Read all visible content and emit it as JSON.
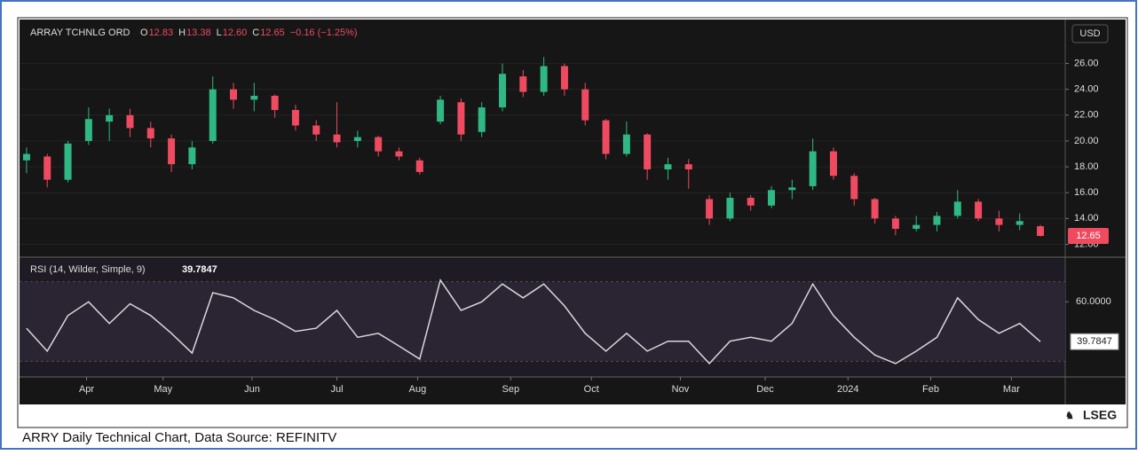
{
  "chart_data": [
    {
      "type": "candlestick",
      "title": "ARRAY TCHNLG ORD",
      "quote": [
        {
          "key": "O",
          "text": "12.83"
        },
        {
          "key": "H",
          "text": "13.38"
        },
        {
          "key": "L",
          "text": "12.60"
        },
        {
          "key": "C",
          "text": "12.65"
        }
      ],
      "change": "−0.16 (−1.25%)",
      "currency": "USD",
      "last_label": "12.65",
      "up_color": "#2fb884",
      "down_color": "#ef4a5f",
      "open": [
        18.5,
        18.8,
        17,
        20,
        21.5,
        22,
        21,
        20.2,
        18.2,
        20,
        24,
        23.2,
        23.5,
        22.4,
        21.2,
        20.5,
        20,
        20.3,
        19.2,
        18.5,
        21.5,
        23,
        20.7,
        22.6,
        25,
        23.8,
        25.8,
        24,
        21.6,
        19,
        20.5,
        17.8,
        18.2,
        15.5,
        14,
        15.6,
        15,
        16.2,
        16.5,
        19.2,
        17.3,
        15.5,
        14,
        13.2,
        13.5,
        14.2,
        15.3,
        14,
        13.5,
        13.4
      ],
      "high": [
        19.5,
        19,
        20,
        22.6,
        22.5,
        22.5,
        21.5,
        20.5,
        20,
        25,
        24.5,
        24.5,
        23.6,
        22.8,
        21.6,
        23,
        20.8,
        20.4,
        19.5,
        18.7,
        23.5,
        23.3,
        23,
        26,
        25.5,
        26.5,
        26,
        24.5,
        21.7,
        21.5,
        20.6,
        18.7,
        18.6,
        15.8,
        16,
        15.8,
        16.5,
        17,
        20.2,
        19.5,
        17.5,
        15.6,
        14.2,
        14.2,
        14.5,
        16.2,
        15.5,
        14.6,
        14.4,
        13.5
      ],
      "low": [
        17.5,
        16.4,
        16.8,
        19.7,
        20,
        20.3,
        19.5,
        17.6,
        17.8,
        19.8,
        22.5,
        22.3,
        21.8,
        20.8,
        20,
        19.5,
        19.5,
        18.8,
        18.5,
        17.4,
        21.3,
        20,
        20.3,
        22.3,
        23.4,
        23.5,
        23.5,
        21.2,
        18.6,
        18.8,
        17,
        17,
        16.3,
        13.5,
        13.8,
        14.6,
        14.8,
        15.5,
        16.2,
        17,
        15,
        13.6,
        12.7,
        13,
        13,
        14,
        13.8,
        13,
        13.1,
        12.6
      ],
      "close": [
        19,
        17,
        19.8,
        21.7,
        22,
        21,
        20.2,
        18.2,
        19.5,
        24,
        23.2,
        23.5,
        22.4,
        21.2,
        20.5,
        19.9,
        20.3,
        19.2,
        18.8,
        17.6,
        23.2,
        20.5,
        22.6,
        25.2,
        23.8,
        25.8,
        24,
        21.6,
        19,
        20.5,
        17.8,
        18.2,
        17.8,
        14,
        15.6,
        15,
        16.2,
        16.4,
        19.2,
        17.3,
        15.5,
        14,
        13.2,
        13.5,
        14.2,
        15.3,
        14,
        13.5,
        13.8,
        12.65
      ],
      "xlim": [
        -0.34,
        50.2
      ],
      "ylim": [
        11,
        29.2
      ],
      "yticks": [
        {
          "value": 12,
          "label": "12.00"
        },
        {
          "value": 14,
          "label": "14.00"
        },
        {
          "value": 16,
          "label": "16.00"
        },
        {
          "value": 18,
          "label": "18.00"
        },
        {
          "value": 20,
          "label": "20.00"
        },
        {
          "value": 22,
          "label": "22.00"
        },
        {
          "value": 24,
          "label": "24.00"
        },
        {
          "value": 26,
          "label": "26.00"
        }
      ]
    },
    {
      "type": "line",
      "title": "RSI (14, Wilder, Simple, 9)",
      "last_label": "39.7847",
      "color": "#d8d8d8",
      "values": [
        46.6,
        35,
        53,
        60,
        49,
        59,
        53,
        44,
        34,
        64.6,
        62,
        55.6,
        51,
        45,
        46.6,
        55.6,
        42,
        44,
        37.6,
        31,
        71,
        55.6,
        60,
        69,
        62,
        69,
        57.9,
        44,
        35,
        44,
        35,
        40,
        40,
        28.7,
        40,
        42,
        40,
        49,
        69,
        53,
        42,
        33,
        28.7,
        35,
        42,
        62,
        51,
        44,
        49,
        39.7847
      ],
      "band": [
        30,
        70
      ],
      "xlim": [
        -0.34,
        50.2
      ],
      "ylim": [
        21.9,
        81.7
      ],
      "yticks": [
        {
          "value": 60,
          "label": "60.0000"
        }
      ],
      "xticks": [
        {
          "value": 2.9,
          "label": "Apr"
        },
        {
          "value": 6.6,
          "label": "May"
        },
        {
          "value": 10.9,
          "label": "Jun"
        },
        {
          "value": 15.0,
          "label": "Jul"
        },
        {
          "value": 18.9,
          "label": "Aug"
        },
        {
          "value": 23.4,
          "label": "Sep"
        },
        {
          "value": 27.3,
          "label": "Oct"
        },
        {
          "value": 31.6,
          "label": "Nov"
        },
        {
          "value": 35.7,
          "label": "Dec"
        },
        {
          "value": 39.7,
          "label": "2024"
        },
        {
          "value": 43.7,
          "label": "Feb"
        },
        {
          "value": 47.6,
          "label": "Mar"
        }
      ]
    }
  ],
  "logo": "LSEG",
  "caption": "ARRY Daily Technical Chart, Data Source: REFINITV"
}
